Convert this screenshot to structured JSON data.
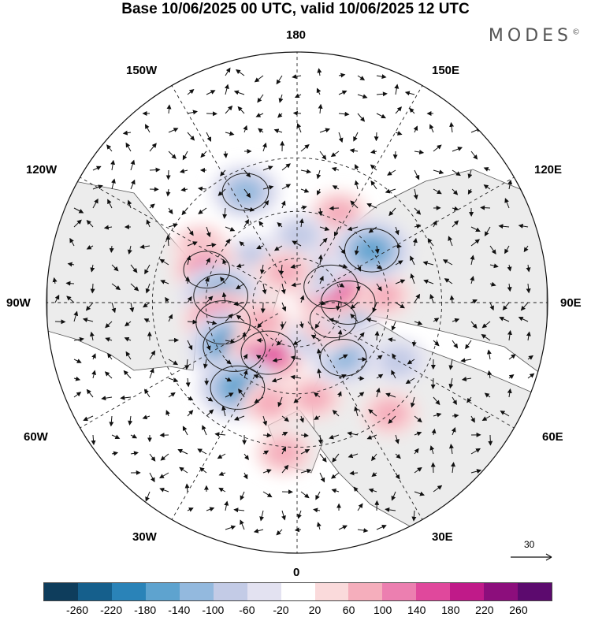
{
  "title": "Base 10/06/2025 00 UTC, valid 10/06/2025 12 UTC",
  "brand": "MODES",
  "brand_mark": "©",
  "longitude_labels": {
    "lon_180": "180",
    "lon_150w": "150W",
    "lon_150e": "150E",
    "lon_120w": "120W",
    "lon_120e": "120E",
    "lon_90w": "90W",
    "lon_90e": "90E",
    "lon_60w": "60W",
    "lon_60e": "60E",
    "lon_30w": "30W",
    "lon_30e": "30E",
    "lon_0": "0"
  },
  "vector_scale_label": "30",
  "colorbar": {
    "ticks": [
      "-260",
      "-220",
      "-180",
      "-140",
      "-100",
      "-60",
      "-20",
      "20",
      "60",
      "100",
      "140",
      "180",
      "220",
      "260"
    ],
    "colors": [
      "#0e3d5c",
      "#155f8c",
      "#2a83b8",
      "#5ea3cf",
      "#93b9de",
      "#c3cbe6",
      "#e3e2f1",
      "#ffffff",
      "#fadadb",
      "#f5aebc",
      "#ec7fb0",
      "#e0489c",
      "#c01a89",
      "#8c0e7c",
      "#5c0a6e"
    ]
  },
  "anomalies": [
    {
      "lon": 155,
      "lat": 47,
      "value": 60
    },
    {
      "lon": 150,
      "lat": 65,
      "value": 60
    },
    {
      "lon": 178,
      "lat": 60,
      "value": -60
    },
    {
      "lon": -135,
      "lat": 62,
      "value": -60
    },
    {
      "lon": -155,
      "lat": 38,
      "value": -100
    },
    {
      "lon": -120,
      "lat": 42,
      "value": 60
    },
    {
      "lon": -110,
      "lat": 48,
      "value": 100
    },
    {
      "lon": -105,
      "lat": 64,
      "value": 60
    },
    {
      "lon": -95,
      "lat": 56,
      "value": -140
    },
    {
      "lon": -75,
      "lat": 56,
      "value": 140
    },
    {
      "lon": -55,
      "lat": 56,
      "value": -180
    },
    {
      "lon": -30,
      "lat": 64,
      "value": 140
    },
    {
      "lon": -35,
      "lat": 45,
      "value": -140
    },
    {
      "lon": -15,
      "lat": 45,
      "value": 60
    },
    {
      "lon": -60,
      "lat": 72,
      "value": 60
    },
    {
      "lon": 10,
      "lat": 48,
      "value": 60
    },
    {
      "lon": 40,
      "lat": 58,
      "value": -100
    },
    {
      "lon": 25,
      "lat": 72,
      "value": -60
    },
    {
      "lon": 65,
      "lat": 72,
      "value": 100
    },
    {
      "lon": 90,
      "lat": 67,
      "value": -140
    },
    {
      "lon": 95,
      "lat": 52,
      "value": 60
    },
    {
      "lon": 115,
      "lat": 73,
      "value": 140
    },
    {
      "lon": 125,
      "lat": 50,
      "value": -140
    },
    {
      "lon": 150,
      "lat": 75,
      "value": -60
    },
    {
      "lon": -160,
      "lat": 75,
      "value": 60
    },
    {
      "lon": 60,
      "lat": 40,
      "value": -60
    },
    {
      "lon": 40,
      "lat": 30,
      "value": 60
    },
    {
      "lon": -5,
      "lat": 28,
      "value": 60
    }
  ]
}
